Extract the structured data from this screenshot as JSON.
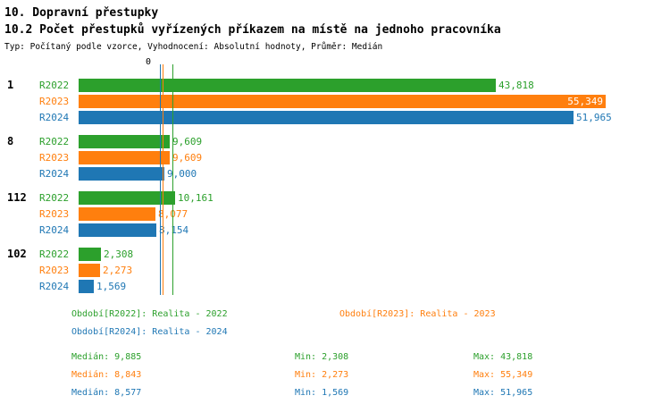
{
  "header": {
    "title": "10. Dopravní přestupky",
    "subtitle": "10.2 Počet přestupků vyřízených příkazem na místě na jednoho pracovníka",
    "meta": "Typ: Počítaný podle vzorce, Vyhodnocení: Absolutní hodnoty, Průměr: Medián"
  },
  "chart_data": {
    "type": "bar",
    "orientation": "horizontal",
    "title": "10.2 Počet přestupků vyřízených příkazem na místě na jednoho pracovníka",
    "categories": [
      "1",
      "8",
      "112",
      "102"
    ],
    "x_axis": {
      "zero_label": "0",
      "xlim": [
        0,
        62000
      ]
    },
    "grid": "vertical-median-lines",
    "legend_position": "bottom",
    "series": [
      {
        "name": "R2022",
        "color": "#2ca02c",
        "values": [
          43818,
          9609,
          10161,
          2308
        ],
        "value_labels": [
          "43,818",
          "9,609",
          "10,161",
          "2,308"
        ],
        "label_inside": [
          false,
          false,
          false,
          false
        ],
        "median": 9885,
        "min": 2308,
        "max": 43818,
        "stats": {
          "median_label": "Medián: 9,885",
          "min_label": "Min: 2,308",
          "max_label": "Max: 43,818"
        },
        "period_label": "Období[R2022]: Realita - 2022"
      },
      {
        "name": "R2023",
        "color": "#ff7f0e",
        "values": [
          55349,
          9609,
          8077,
          2273
        ],
        "value_labels": [
          "55,349",
          "9,609",
          "8,077",
          "2,273"
        ],
        "label_inside": [
          true,
          false,
          false,
          false
        ],
        "median": 8843,
        "min": 2273,
        "max": 55349,
        "stats": {
          "median_label": "Medián: 8,843",
          "min_label": "Min: 2,273",
          "max_label": "Max: 55,349"
        },
        "period_label": "Období[R2023]: Realita - 2023"
      },
      {
        "name": "R2024",
        "color": "#1f77b4",
        "values": [
          51965,
          9000,
          8154,
          1569
        ],
        "value_labels": [
          "51,965",
          "9,000",
          "8,154",
          "1,569"
        ],
        "label_inside": [
          false,
          false,
          false,
          false
        ],
        "median": 8577,
        "min": 1569,
        "max": 51965,
        "stats": {
          "median_label": "Medián: 8,577",
          "min_label": "Min: 1,569",
          "max_label": "Max: 51,965"
        },
        "period_label": "Období[R2024]: Realita - 2024"
      }
    ]
  }
}
